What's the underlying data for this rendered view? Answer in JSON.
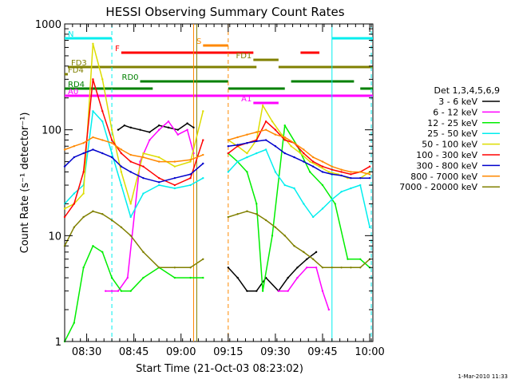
{
  "chart_data": {
    "type": "line",
    "title": "HESSI Observing Summary Count Rates",
    "xlabel": "Start Time (21-Oct-03 08:23:02)",
    "ylabel": "Count Rate (s⁻¹ detector⁻¹)",
    "yscale": "log",
    "ylim": [
      1,
      1000
    ],
    "xlim_minutes": [
      0,
      98
    ],
    "x_ticks": [
      {
        "minute": 7,
        "label": "08:30"
      },
      {
        "minute": 22,
        "label": "08:45"
      },
      {
        "minute": 37,
        "label": "09:00"
      },
      {
        "minute": 52,
        "label": "09:15"
      },
      {
        "minute": 67,
        "label": "09:30"
      },
      {
        "minute": 82,
        "label": "09:45"
      },
      {
        "minute": 97,
        "label": "10:00"
      }
    ],
    "y_ticks": [
      {
        "value": 1,
        "label": "1"
      },
      {
        "value": 10,
        "label": "10"
      },
      {
        "value": 100,
        "label": "100"
      },
      {
        "value": 1000,
        "label": "1000"
      }
    ],
    "legend_title": "Det 1,3,4,5,6,9",
    "legend_position": "right",
    "series": [
      {
        "name": "3 - 6 keV",
        "color": "#000000",
        "x": [
          17,
          19,
          21,
          24,
          27,
          30,
          33,
          36,
          39,
          41,
          52,
          55,
          58,
          61,
          64,
          68,
          71,
          74,
          77,
          80
        ],
        "y": [
          100,
          110,
          105,
          100,
          95,
          110,
          105,
          100,
          115,
          105,
          5,
          4,
          3,
          3,
          4,
          3,
          4,
          5,
          6,
          7
        ]
      },
      {
        "name": "6 - 12 keV",
        "color": "#ff00ff",
        "x": [
          13,
          15,
          17,
          20,
          24,
          27,
          30,
          33,
          36,
          39,
          41,
          68,
          71,
          74,
          77,
          80,
          82,
          84
        ],
        "y": [
          3,
          3,
          3,
          4,
          50,
          80,
          100,
          120,
          90,
          100,
          60,
          3,
          3,
          4,
          5,
          5,
          3,
          2
        ]
      },
      {
        "name": "12 - 25 keV",
        "color": "#00ee00",
        "x": [
          0,
          3,
          6,
          9,
          12,
          15,
          18,
          21,
          25,
          30,
          35,
          40,
          44,
          52,
          55,
          58,
          61,
          63,
          66,
          70,
          74,
          78,
          82,
          86,
          90,
          94,
          97
        ],
        "y": [
          1,
          1.5,
          5,
          8,
          7,
          4,
          3,
          3,
          4,
          5,
          4,
          4,
          4,
          60,
          50,
          40,
          20,
          3,
          10,
          110,
          70,
          40,
          30,
          20,
          6,
          6,
          5
        ]
      },
      {
        "name": "25 - 50 keV",
        "color": "#00eeee",
        "x": [
          0,
          3,
          6,
          9,
          12,
          15,
          18,
          21,
          25,
          30,
          35,
          40,
          44,
          52,
          55,
          58,
          61,
          64,
          67,
          70,
          73,
          76,
          79,
          82,
          85,
          88,
          91,
          94,
          97
        ],
        "y": [
          20,
          25,
          30,
          150,
          120,
          60,
          30,
          15,
          25,
          30,
          28,
          30,
          35,
          40,
          50,
          55,
          60,
          65,
          40,
          30,
          28,
          20,
          15,
          18,
          22,
          26,
          28,
          30,
          12
        ]
      },
      {
        "name": "50 - 100 keV",
        "color": "#dddd00",
        "x": [
          0,
          3,
          6,
          9,
          12,
          15,
          18,
          21,
          25,
          30,
          35,
          40,
          44,
          52,
          55,
          58,
          61,
          63,
          66,
          69,
          72,
          75,
          78,
          81,
          84,
          87,
          90,
          94,
          97
        ],
        "y": [
          18,
          20,
          25,
          650,
          300,
          100,
          40,
          20,
          60,
          55,
          45,
          50,
          150,
          80,
          70,
          60,
          80,
          170,
          120,
          90,
          70,
          60,
          50,
          45,
          40,
          38,
          35,
          35,
          40
        ]
      },
      {
        "name": "100 - 300 keV",
        "color": "#ff0000",
        "x": [
          0,
          3,
          6,
          9,
          12,
          15,
          18,
          21,
          25,
          30,
          35,
          40,
          44,
          52,
          55,
          58,
          61,
          64,
          67,
          70,
          73,
          76,
          79,
          82,
          85,
          88,
          91,
          94,
          97
        ],
        "y": [
          15,
          20,
          40,
          300,
          150,
          80,
          60,
          50,
          45,
          35,
          30,
          35,
          80,
          60,
          70,
          75,
          80,
          120,
          100,
          80,
          75,
          60,
          50,
          45,
          42,
          40,
          38,
          40,
          45
        ]
      },
      {
        "name": "300 - 800 keV",
        "color": "#0000cc",
        "x": [
          0,
          3,
          6,
          9,
          12,
          15,
          18,
          21,
          25,
          30,
          35,
          40,
          44,
          52,
          55,
          58,
          61,
          64,
          67,
          70,
          73,
          76,
          79,
          82,
          85,
          88,
          91,
          94,
          97
        ],
        "y": [
          45,
          55,
          60,
          65,
          60,
          55,
          45,
          40,
          35,
          32,
          35,
          38,
          48,
          70,
          72,
          75,
          78,
          80,
          70,
          60,
          55,
          50,
          45,
          40,
          38,
          37,
          35,
          35,
          35
        ]
      },
      {
        "name": "800 - 7000 keV",
        "color": "#ff8800",
        "x": [
          0,
          3,
          6,
          9,
          12,
          15,
          18,
          21,
          25,
          30,
          35,
          40,
          44,
          52,
          55,
          58,
          61,
          64,
          67,
          70,
          73,
          76,
          79,
          82,
          85,
          88,
          91,
          94,
          97
        ],
        "y": [
          65,
          70,
          75,
          85,
          80,
          75,
          65,
          58,
          55,
          50,
          50,
          52,
          58,
          80,
          85,
          90,
          95,
          100,
          90,
          85,
          75,
          65,
          55,
          50,
          45,
          42,
          40,
          40,
          38
        ]
      },
      {
        "name": "7000 - 20000 keV",
        "color": "#808000",
        "x": [
          0,
          3,
          6,
          9,
          12,
          15,
          18,
          21,
          25,
          30,
          35,
          40,
          44,
          52,
          55,
          58,
          61,
          64,
          67,
          70,
          73,
          76,
          79,
          82,
          85,
          88,
          91,
          94,
          97
        ],
        "y": [
          8,
          12,
          15,
          17,
          16,
          14,
          12,
          10,
          7,
          5,
          5,
          5,
          6,
          15,
          16,
          17,
          16,
          14,
          12,
          10,
          8,
          7,
          6,
          5,
          5,
          5,
          5,
          5,
          6
        ]
      }
    ],
    "flags": [
      {
        "label": "N",
        "color": "#00eeee",
        "segments": [
          [
            0,
            15
          ],
          [
            85,
            98
          ]
        ]
      },
      {
        "label": "S",
        "color": "#ff8800",
        "segments": [
          [
            44,
            52
          ]
        ]
      },
      {
        "label": "F",
        "color": "#ff0000",
        "segments": [
          [
            18,
            60
          ],
          [
            75,
            81
          ]
        ]
      },
      {
        "label": "FD1",
        "color": "#808000",
        "segments": [
          [
            60,
            68
          ]
        ]
      },
      {
        "label": "FD3",
        "color": "#808000",
        "segments": [
          [
            1,
            61
          ],
          [
            68,
            98
          ]
        ]
      },
      {
        "label": "FD4",
        "color": "#808000",
        "segments": [
          [
            0,
            1
          ]
        ]
      },
      {
        "label": "RD0",
        "color": "#008000",
        "segments": [
          [
            24,
            52
          ],
          [
            72,
            92
          ]
        ]
      },
      {
        "label": "RD4",
        "color": "#008000",
        "segments": [
          [
            0,
            28
          ],
          [
            52,
            70
          ],
          [
            94,
            98
          ]
        ]
      },
      {
        "label": "A0",
        "color": "#ff00ff",
        "segments": [
          [
            0,
            98
          ]
        ]
      },
      {
        "label": "A1",
        "color": "#ff00ff",
        "segments": [
          [
            60,
            68
          ]
        ]
      }
    ],
    "vertical_markers": [
      {
        "minute": 15,
        "color": "#00eeee",
        "style": "dashed"
      },
      {
        "minute": 41,
        "color": "#ff8800",
        "style": "solid"
      },
      {
        "minute": 42,
        "color": "#808000",
        "style": "solid"
      },
      {
        "minute": 52,
        "color": "#ff8800",
        "style": "dashed"
      },
      {
        "minute": 85,
        "color": "#00eeee",
        "style": "solid"
      },
      {
        "minute": 97.5,
        "color": "#00eeee",
        "style": "dashed"
      }
    ]
  },
  "footer_date": "1-Mar-2010 11:33"
}
